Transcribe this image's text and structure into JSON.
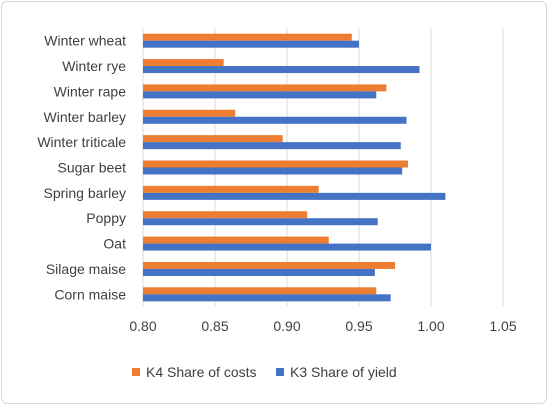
{
  "chart_data": {
    "type": "bar",
    "orientation": "horizontal",
    "categories": [
      "Winter wheat",
      "Winter rye",
      "Winter rape",
      "Winter barley",
      "Winter triticale",
      "Sugar beet",
      "Spring barley",
      "Poppy",
      "Oat",
      "Silage maise",
      "Corn maise"
    ],
    "series": [
      {
        "name": "K4 Share of costs",
        "color": "#ed7d31",
        "values": [
          0.945,
          0.856,
          0.969,
          0.864,
          0.897,
          0.984,
          0.922,
          0.914,
          0.929,
          0.975,
          0.962
        ]
      },
      {
        "name": "K3 Share of yield",
        "color": "#4472c4",
        "values": [
          0.95,
          0.992,
          0.962,
          0.983,
          0.979,
          0.98,
          1.01,
          0.963,
          1.0,
          0.961,
          0.972
        ]
      }
    ],
    "xlim": [
      0.8,
      1.05
    ],
    "xticks": [
      "0.80",
      "0.85",
      "0.90",
      "0.95",
      "1.00",
      "1.05"
    ],
    "grid": "vertical",
    "legend": "bottom",
    "title": "",
    "xlabel": "",
    "ylabel": ""
  }
}
